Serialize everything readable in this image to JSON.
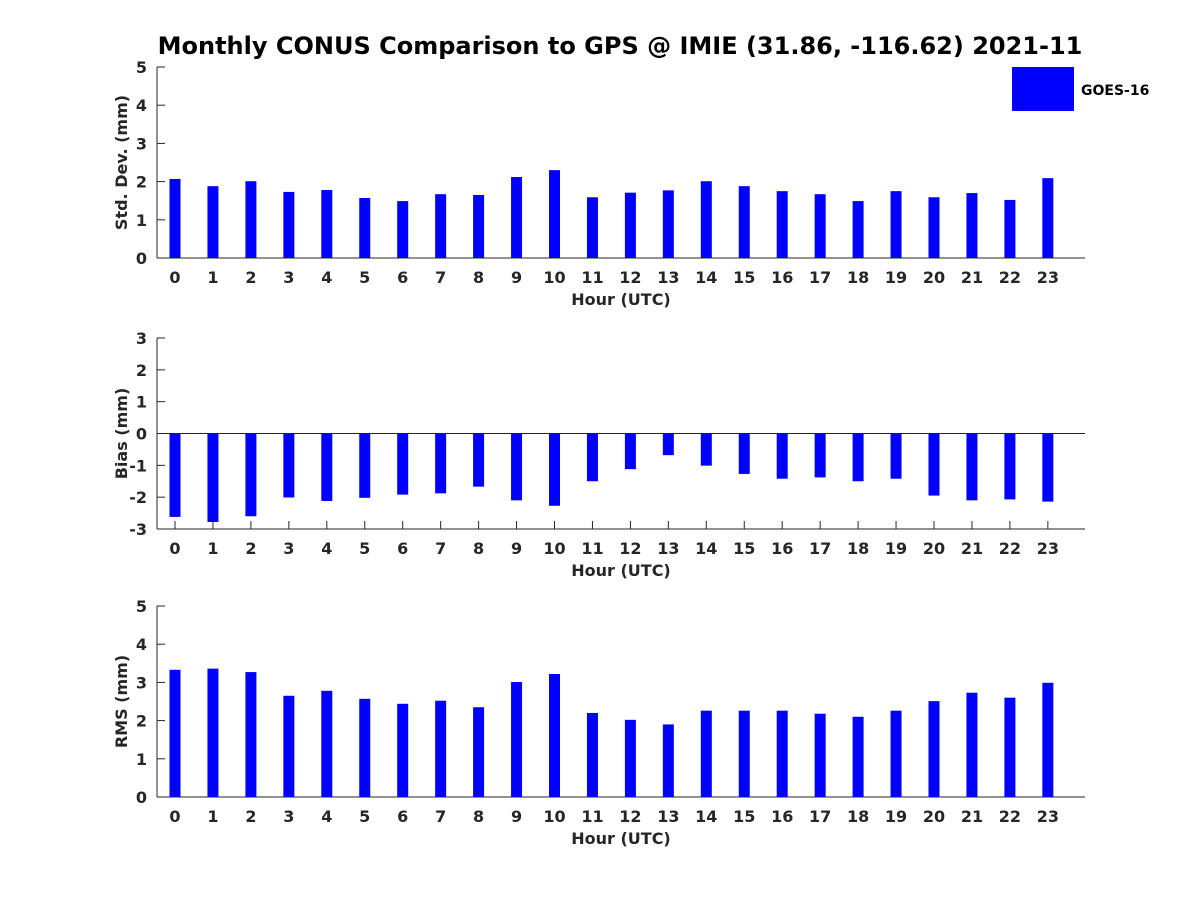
{
  "title": "Monthly CONUS Comparison to GPS @ IMIE (31.86, -116.62) 2021-11",
  "legend": {
    "label": "GOES-16",
    "color": "#0000ff",
    "placement": "top-right"
  },
  "chart_data": [
    {
      "type": "bar",
      "xlabel": "Hour (UTC)",
      "ylabel": "Std. Dev. (mm)",
      "ylim": [
        0,
        5
      ],
      "yticks": [
        "0",
        "1",
        "2",
        "3",
        "4",
        "5"
      ],
      "categories": [
        "0",
        "1",
        "2",
        "3",
        "4",
        "5",
        "6",
        "7",
        "8",
        "9",
        "10",
        "11",
        "12",
        "13",
        "14",
        "15",
        "16",
        "17",
        "18",
        "19",
        "20",
        "21",
        "22",
        "23"
      ],
      "series": [
        {
          "name": "GOES-16",
          "values": [
            2.07,
            1.88,
            2.01,
            1.73,
            1.78,
            1.57,
            1.49,
            1.67,
            1.65,
            2.12,
            2.3,
            1.59,
            1.71,
            1.77,
            2.01,
            1.88,
            1.75,
            1.67,
            1.49,
            1.75,
            1.59,
            1.7,
            1.52,
            2.09
          ]
        }
      ],
      "grid": false
    },
    {
      "type": "bar",
      "xlabel": "Hour (UTC)",
      "ylabel": "Bias (mm)",
      "ylim": [
        -3,
        3
      ],
      "yticks": [
        "-3",
        "-2",
        "-1",
        "0",
        "1",
        "2",
        "3"
      ],
      "categories": [
        "0",
        "1",
        "2",
        "3",
        "4",
        "5",
        "6",
        "7",
        "8",
        "9",
        "10",
        "11",
        "12",
        "13",
        "14",
        "15",
        "16",
        "17",
        "18",
        "19",
        "20",
        "21",
        "22",
        "23"
      ],
      "series": [
        {
          "name": "GOES-16",
          "values": [
            -2.62,
            -2.78,
            -2.6,
            -2.01,
            -2.12,
            -2.02,
            -1.92,
            -1.88,
            -1.67,
            -2.1,
            -2.27,
            -1.5,
            -1.12,
            -0.68,
            -1.01,
            -1.27,
            -1.42,
            -1.38,
            -1.5,
            -1.42,
            -1.95,
            -2.1,
            -2.07,
            -2.14
          ]
        }
      ],
      "grid": false
    },
    {
      "type": "bar",
      "xlabel": "Hour (UTC)",
      "ylabel": "RMS (mm)",
      "ylim": [
        0,
        5
      ],
      "yticks": [
        "0",
        "1",
        "2",
        "3",
        "4",
        "5"
      ],
      "categories": [
        "0",
        "1",
        "2",
        "3",
        "4",
        "5",
        "6",
        "7",
        "8",
        "9",
        "10",
        "11",
        "12",
        "13",
        "14",
        "15",
        "16",
        "17",
        "18",
        "19",
        "20",
        "21",
        "22",
        "23"
      ],
      "series": [
        {
          "name": "GOES-16",
          "values": [
            3.33,
            3.36,
            3.27,
            2.65,
            2.78,
            2.57,
            2.44,
            2.52,
            2.35,
            3.01,
            3.22,
            2.2,
            2.02,
            1.9,
            2.26,
            2.26,
            2.26,
            2.18,
            2.1,
            2.26,
            2.51,
            2.73,
            2.6,
            2.99
          ]
        }
      ],
      "grid": false
    }
  ]
}
